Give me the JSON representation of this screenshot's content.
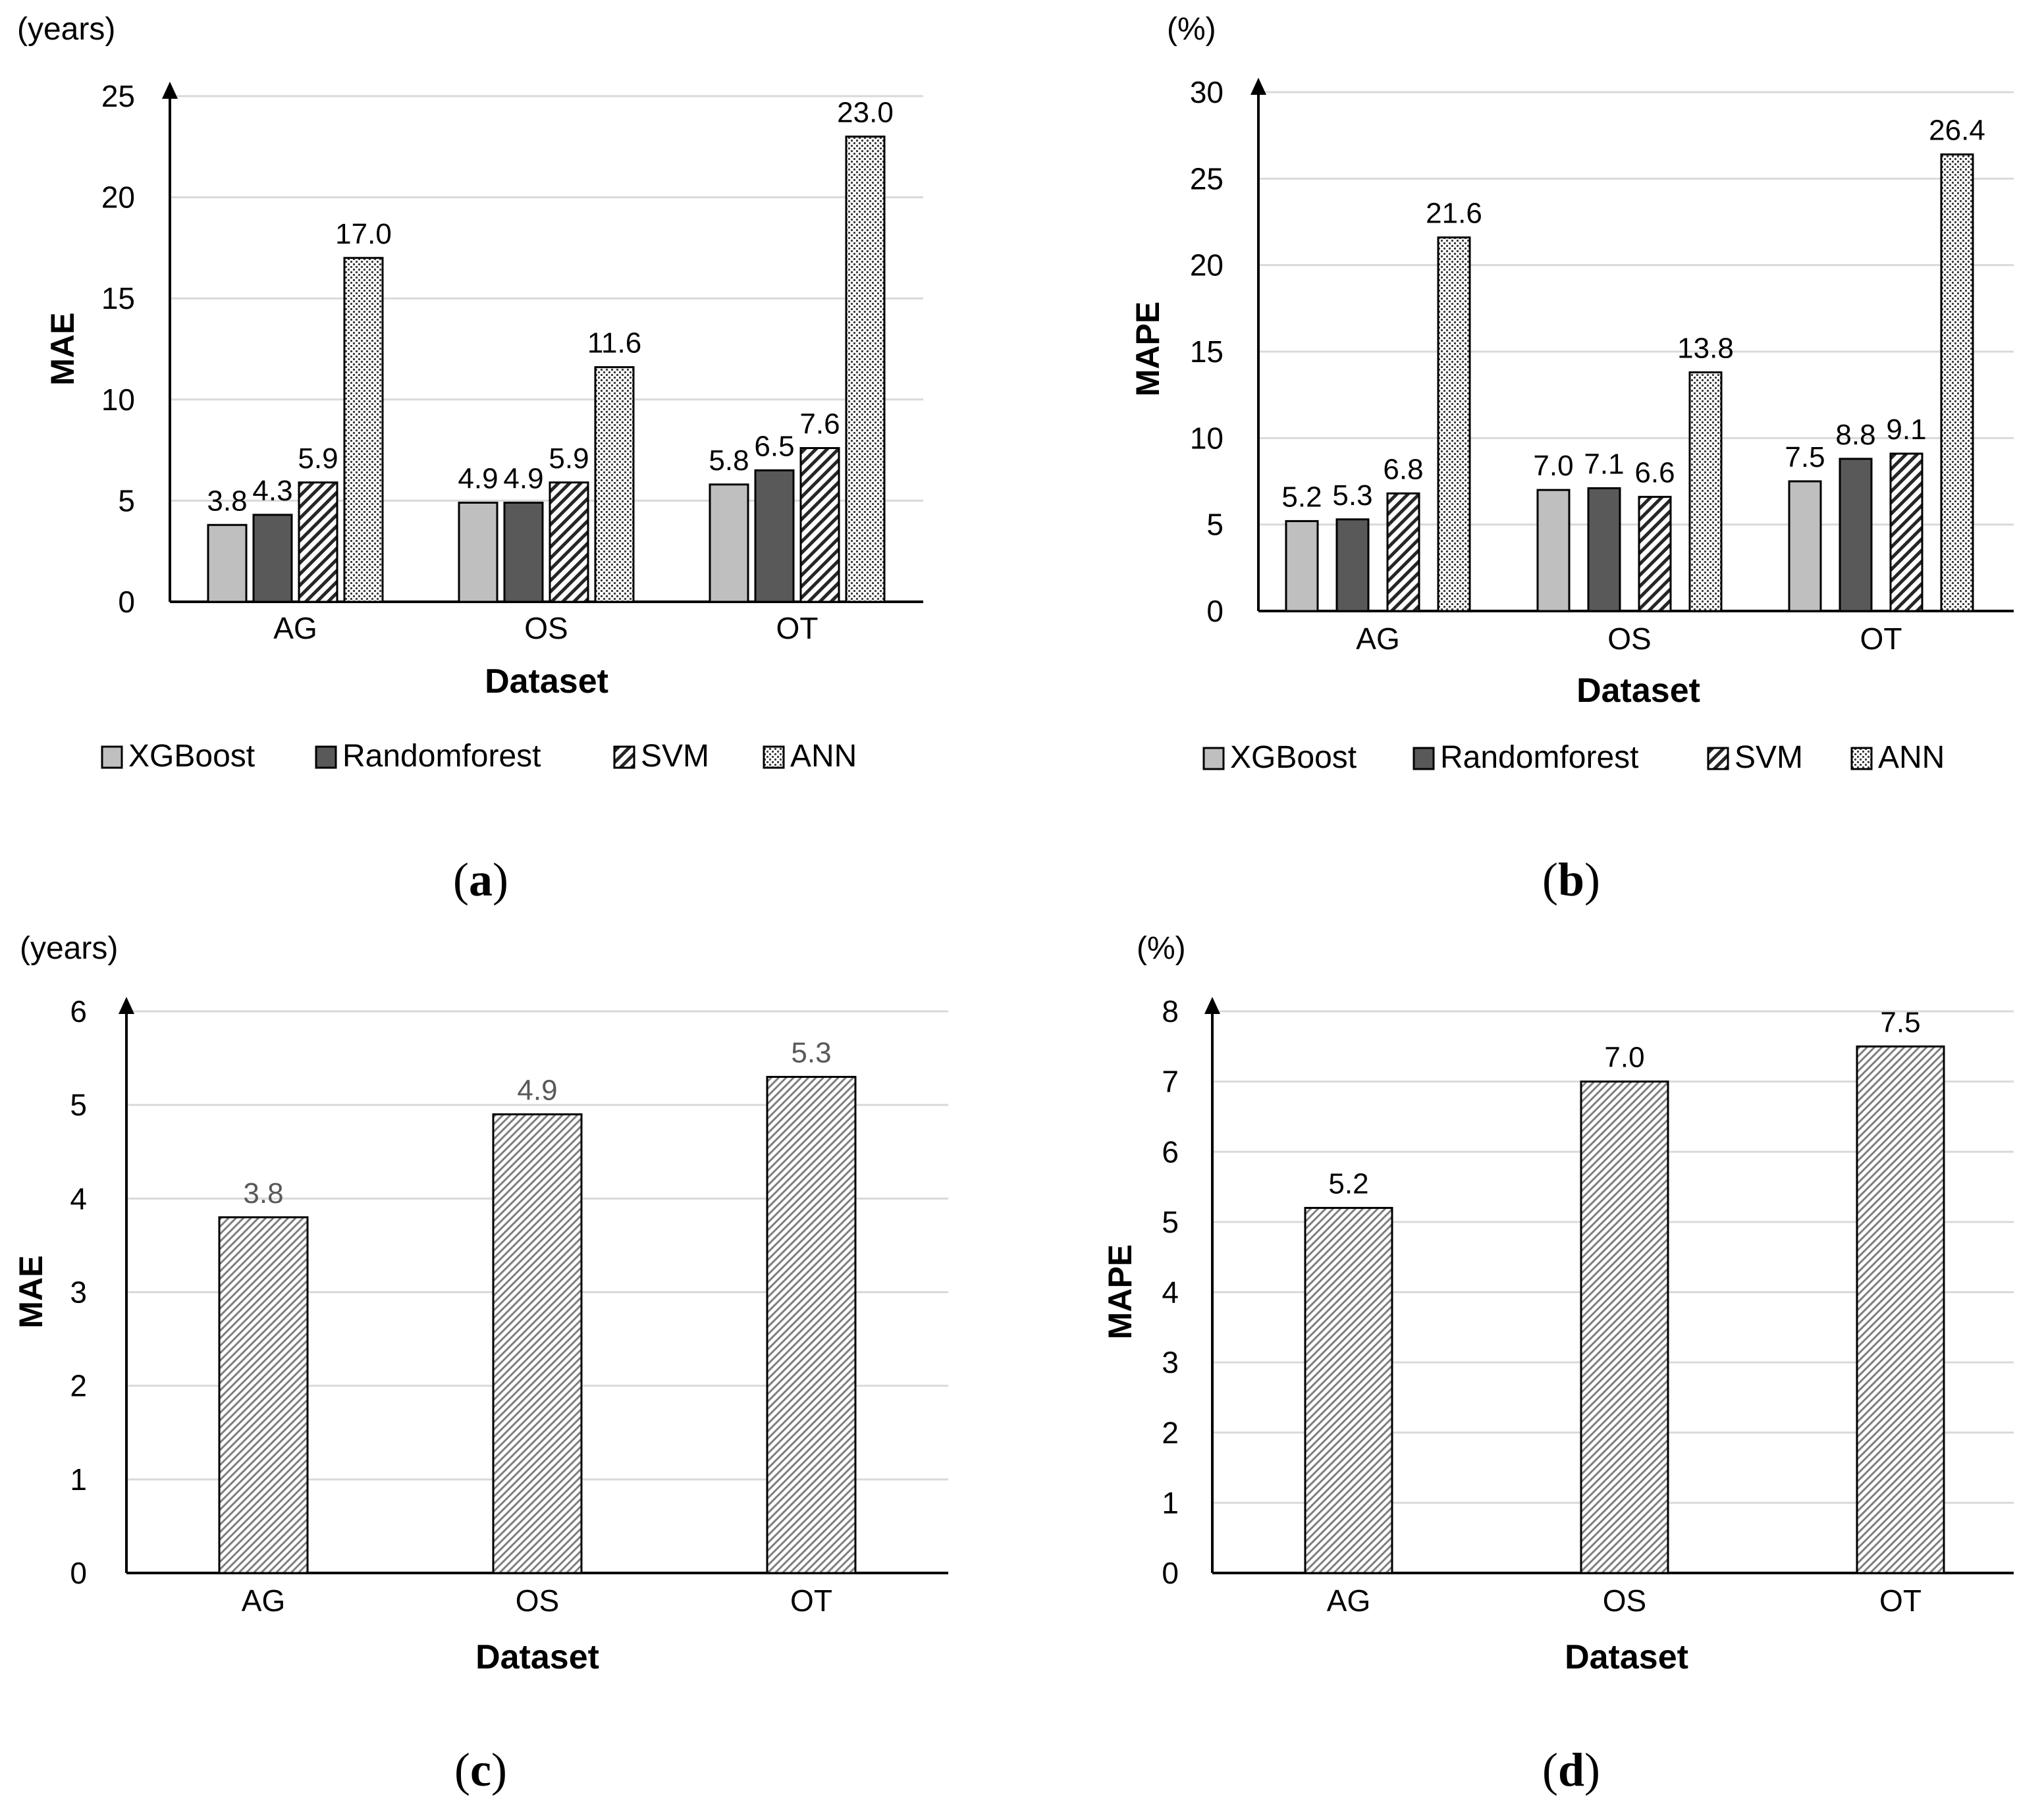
{
  "colors": {
    "gridline": "#d9d9d9",
    "axis": "#000000",
    "text": "#000000",
    "label_gray": "#595959",
    "xgboost_fill": "#bfbfbf",
    "randomforest_fill": "#595959",
    "hatch_line": "#333333",
    "bar_stroke": "#000000"
  },
  "panels": [
    {
      "id": "a",
      "open": "(",
      "letter": "a",
      "close": ")"
    },
    {
      "id": "b",
      "open": "(",
      "letter": "b",
      "close": ")"
    },
    {
      "id": "c",
      "open": "(",
      "letter": "c",
      "close": ")"
    },
    {
      "id": "d",
      "open": "(",
      "letter": "d",
      "close": ")"
    }
  ],
  "chart_data": [
    {
      "id": "a",
      "type": "bar",
      "title": "",
      "unit_label": "(years)",
      "xlabel": "Dataset",
      "ylabel": "MAE",
      "ylim": [
        0,
        25
      ],
      "yticks": [
        0,
        5,
        10,
        15,
        20,
        25
      ],
      "grid": true,
      "legend_position": "bottom",
      "categories": [
        "AG",
        "OS",
        "OT"
      ],
      "series": [
        {
          "name": "XGBoost",
          "style": "solid-light",
          "values": [
            3.8,
            4.9,
            5.8
          ],
          "labels": [
            "3.8",
            "4.9",
            "5.8"
          ]
        },
        {
          "name": "Randomforest",
          "style": "solid-dark",
          "values": [
            4.3,
            4.9,
            6.5
          ],
          "labels": [
            "4.3",
            "4.9",
            "6.5"
          ]
        },
        {
          "name": "SVM",
          "style": "diagonal-hatch",
          "values": [
            5.9,
            5.9,
            7.6
          ],
          "labels": [
            "5.9",
            "5.9",
            "7.6"
          ]
        },
        {
          "name": "ANN",
          "style": "crosshatch",
          "values": [
            17.0,
            11.6,
            23.0
          ],
          "labels": [
            "17.0",
            "11.6",
            "23.0"
          ]
        }
      ]
    },
    {
      "id": "b",
      "type": "bar",
      "title": "",
      "unit_label": "(%)",
      "xlabel": "Dataset",
      "ylabel": "MAPE",
      "ylim": [
        0,
        30
      ],
      "yticks": [
        0,
        5,
        10,
        15,
        20,
        25,
        30
      ],
      "grid": true,
      "legend_position": "bottom",
      "categories": [
        "AG",
        "OS",
        "OT"
      ],
      "series": [
        {
          "name": "XGBoost",
          "style": "solid-light",
          "values": [
            5.2,
            7.0,
            7.5
          ],
          "labels": [
            "5.2",
            "7.0",
            "7.5"
          ]
        },
        {
          "name": "Randomforest",
          "style": "solid-dark",
          "values": [
            5.3,
            7.1,
            8.8
          ],
          "labels": [
            "5.3",
            "7.1",
            "8.8"
          ]
        },
        {
          "name": "SVM",
          "style": "diagonal-hatch",
          "values": [
            6.8,
            6.6,
            9.1
          ],
          "labels": [
            "6.8",
            "6.6",
            "9.1"
          ]
        },
        {
          "name": "ANN",
          "style": "crosshatch",
          "values": [
            21.6,
            13.8,
            26.4
          ],
          "labels": [
            "21.6",
            "13.8",
            "26.4"
          ]
        }
      ]
    },
    {
      "id": "c",
      "type": "bar",
      "title": "",
      "unit_label": "(years)",
      "xlabel": "Dataset",
      "ylabel": "MAE",
      "ylim": [
        0,
        6
      ],
      "yticks": [
        0,
        1,
        2,
        3,
        4,
        5,
        6
      ],
      "grid": true,
      "legend_position": "none",
      "label_color": "gray",
      "categories": [
        "AG",
        "OS",
        "OT"
      ],
      "series": [
        {
          "name": "",
          "style": "fine-hatch",
          "values": [
            3.8,
            4.9,
            5.3
          ],
          "labels": [
            "3.8",
            "4.9",
            "5.3"
          ]
        }
      ]
    },
    {
      "id": "d",
      "type": "bar",
      "title": "",
      "unit_label": "(%)",
      "xlabel": "Dataset",
      "ylabel": "MAPE",
      "ylim": [
        0,
        8
      ],
      "yticks": [
        0,
        1,
        2,
        3,
        4,
        5,
        6,
        7,
        8
      ],
      "grid": true,
      "legend_position": "none",
      "label_color": "black",
      "categories": [
        "AG",
        "OS",
        "OT"
      ],
      "series": [
        {
          "name": "",
          "style": "fine-hatch",
          "values": [
            5.2,
            7.0,
            7.5
          ],
          "labels": [
            "5.2",
            "7.0",
            "7.5"
          ]
        }
      ]
    }
  ]
}
